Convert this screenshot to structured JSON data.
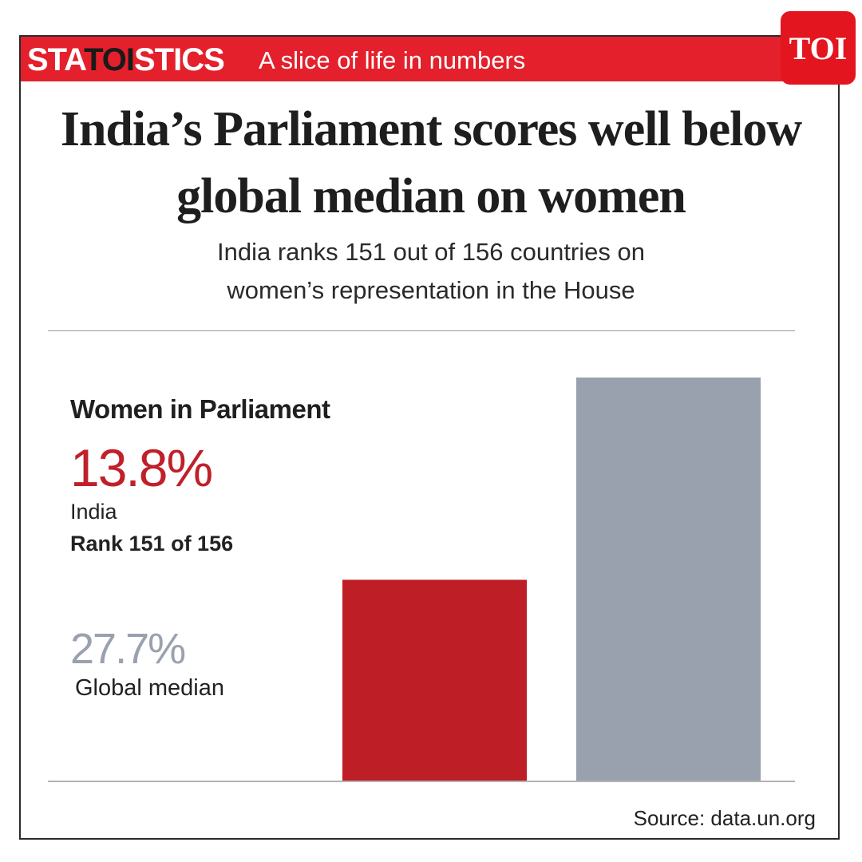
{
  "header": {
    "brand_pre": "STA",
    "brand_mid": "TOI",
    "brand_post": "STICS",
    "tagline": "A slice of life in numbers",
    "badge": "TOI"
  },
  "title": "India’s Parliament scores well below global median on women",
  "subtitle_line1": "India ranks 151 out of 156 countries on",
  "subtitle_line2": "women’s representation in the House",
  "panel": {
    "label": "Women in Parliament",
    "india_value": "13.8%",
    "india_name": "India",
    "india_rank": "Rank 151 of 156",
    "median_value": "27.7%",
    "median_name": "Global median"
  },
  "chart_data": {
    "type": "bar",
    "title": "Women in Parliament",
    "categories": [
      "India",
      "Global median"
    ],
    "values": [
      13.8,
      27.7
    ],
    "colors": [
      "#be1e26",
      "#99a0ae"
    ],
    "ylim": [
      0,
      27.7
    ],
    "grid": false
  },
  "source": "Source: data.un.org"
}
